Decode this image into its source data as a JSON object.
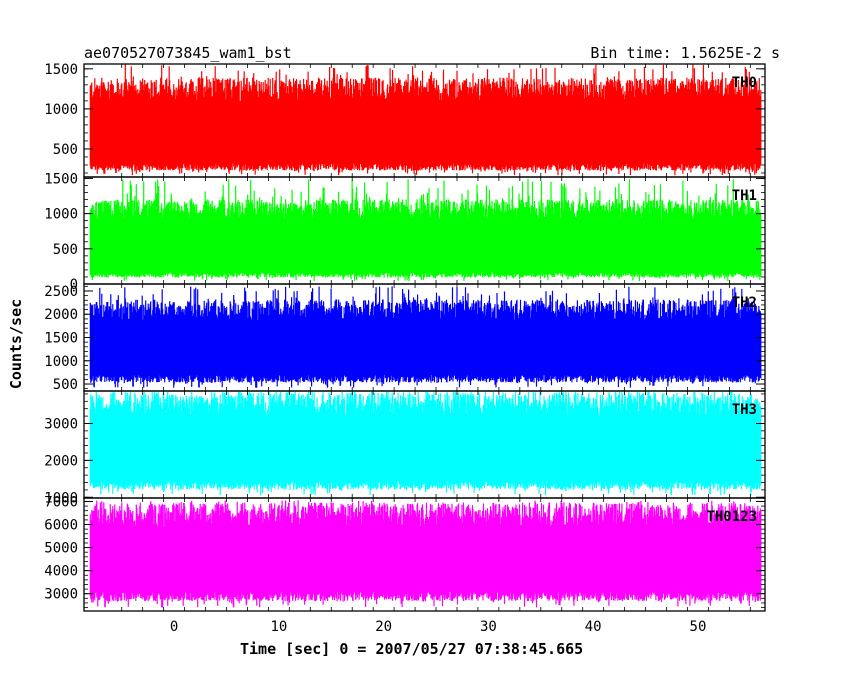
{
  "header": {
    "title": "ae070527073845_wam1_bst",
    "bin_time": "Bin time: 1.5625E-2 s"
  },
  "axes": {
    "xlabel": "Time [sec] 0 = 2007/05/27 07:38:45.665",
    "ylabel": "Counts/sec"
  },
  "chart_data": {
    "type": "line",
    "x_range": [
      -8.6,
      56.4
    ],
    "x_ticks": [
      0,
      10,
      20,
      30,
      40,
      50
    ],
    "panels": [
      {
        "label": "TH0",
        "color": "#ff0000",
        "ylim": [
          150,
          1560
        ],
        "y_ticks": [
          500,
          1000,
          1500
        ],
        "band_low": 320,
        "band_high": 1180,
        "spike_min": 170,
        "spike_max": 1560
      },
      {
        "label": "TH1",
        "color": "#00ff00",
        "ylim": [
          0,
          1520
        ],
        "y_ticks": [
          0,
          500,
          1000,
          1500
        ],
        "band_low": 170,
        "band_high": 1000,
        "spike_min": 40,
        "spike_max": 1500
      },
      {
        "label": "TH2",
        "color": "#0000ff",
        "ylim": [
          350,
          2650
        ],
        "y_ticks": [
          500,
          1000,
          1500,
          2000,
          2500
        ],
        "band_low": 700,
        "band_high": 2000,
        "spike_min": 420,
        "spike_max": 2600
      },
      {
        "label": "TH3",
        "color": "#00ffff",
        "ylim": [
          980,
          3880
        ],
        "y_ticks": [
          1000,
          2000,
          3000
        ],
        "band_low": 1450,
        "band_high": 3400,
        "spike_min": 1050,
        "spike_max": 3850
      },
      {
        "label": "TH0123",
        "color": "#ff00ff",
        "ylim": [
          2250,
          7150
        ],
        "y_ticks": [
          3000,
          4000,
          5000,
          6000,
          7000
        ],
        "band_low": 3100,
        "band_high": 6200,
        "spike_min": 2400,
        "spike_max": 7050
      }
    ],
    "data_x_start": -8.0,
    "data_x_end": 56.0
  }
}
